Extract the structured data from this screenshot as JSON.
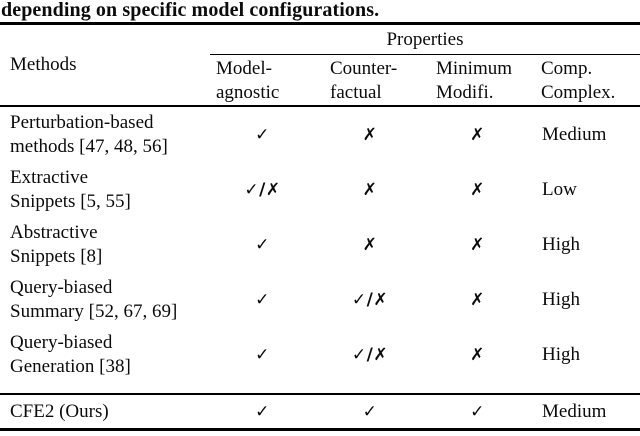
{
  "caption": "depending on specific model configurations.",
  "table": {
    "methods_header": "Methods",
    "properties_header": "Properties",
    "columns": [
      {
        "line1": "Model-",
        "line2": "agnostic"
      },
      {
        "line1": "Counter-",
        "line2": "factual"
      },
      {
        "line1": "Minimum",
        "line2": "Modifi."
      },
      {
        "line1": "Comp.",
        "line2": "Complex."
      }
    ],
    "marks": {
      "yes": "✓",
      "no": "✗",
      "mixed": "✓/✗"
    },
    "rows": [
      {
        "method_line1": "Perturbation-based",
        "method_line2": "methods [47, 48, 56]",
        "cells": [
          "✓",
          "✗",
          "✗",
          "Medium"
        ]
      },
      {
        "method_line1": "Extractive",
        "method_line2": "Snippets [5, 55]",
        "cells": [
          "✓/✗",
          "✗",
          "✗",
          "Low"
        ]
      },
      {
        "method_line1": "Abstractive",
        "method_line2": "Snippets [8]",
        "cells": [
          "✓",
          "✗",
          "✗",
          "High"
        ]
      },
      {
        "method_line1": "Query-biased",
        "method_line2": "Summary [52, 67, 69]",
        "cells": [
          "✓",
          "✓/✗",
          "✗",
          "High"
        ]
      },
      {
        "method_line1": "Query-biased",
        "method_line2": "Generation [38]",
        "cells": [
          "✓",
          "✓/✗",
          "✗",
          "High"
        ]
      },
      {
        "method_line1": "CFE2 (Ours)",
        "method_line2": "",
        "cells": [
          "✓",
          "✓",
          "✓",
          "Medium"
        ]
      }
    ]
  }
}
